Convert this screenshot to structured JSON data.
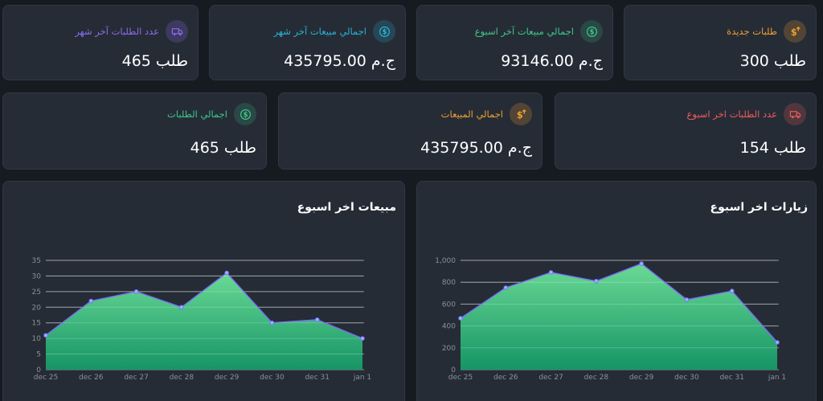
{
  "colors": {
    "background": "#161b22",
    "card": "#262c36",
    "orange": "#f0a030",
    "green": "#3cc98a",
    "cyan": "#27b4d6",
    "purple": "#8b6cf0",
    "red": "#ef5b5b",
    "chart_line": "#7b6ef6",
    "chart_fill_top": "#6ee39a",
    "chart_fill_bottom": "#159a68"
  },
  "stats_row1": [
    {
      "label": "طلبات جديدة",
      "value": "300 طلب",
      "icon": "dollar-up-icon",
      "color": "orange"
    },
    {
      "label": "اجمالي مبيعات آخر اسبوع",
      "value": "93146.00 ج.م",
      "icon": "dollar-circle-icon",
      "color": "green"
    },
    {
      "label": "اجمالي مبيعات آخر شهر",
      "value": "435795.00 ج.م",
      "icon": "dollar-circle-icon",
      "color": "cyan"
    },
    {
      "label": "عدد الطلبات آخر شهر",
      "value": "465 طلب",
      "icon": "truck-icon",
      "color": "purple"
    }
  ],
  "stats_row2": [
    {
      "label": "عدد الطلبات اخر اسبوع",
      "value": "154 طلب",
      "icon": "truck-icon",
      "color": "red"
    },
    {
      "label": "اجمالي المبيعات",
      "value": "435795.00 ج.م",
      "icon": "dollar-up-icon",
      "color": "orange"
    },
    {
      "label": "اجمالي الطلبات",
      "value": "465 طلب",
      "icon": "dollar-circle-icon",
      "color": "green"
    }
  ],
  "chart_data": [
    {
      "type": "area",
      "title": "زيارات اخر اسبوع",
      "x": [
        "dec 25",
        "dec 26",
        "dec 27",
        "dec 28",
        "dec 29",
        "dec 30",
        "dec 31",
        "jan 1"
      ],
      "series": [
        {
          "values": [
            470,
            750,
            890,
            810,
            970,
            640,
            720,
            250
          ]
        }
      ],
      "ylim": [
        0,
        1000
      ],
      "yticks": [
        "0",
        "200",
        "400",
        "600",
        "800",
        "1,000"
      ],
      "grid": true
    },
    {
      "type": "area",
      "title": "مبيعات اخر اسبوع",
      "x": [
        "dec 25",
        "dec 26",
        "dec 27",
        "dec 28",
        "dec 29",
        "dec 30",
        "dec 31",
        "jan 1"
      ],
      "series": [
        {
          "values": [
            11,
            22,
            25,
            20,
            31,
            15,
            16,
            10
          ]
        }
      ],
      "ylim": [
        0,
        35
      ],
      "yticks": [
        "0",
        "5",
        "10",
        "15",
        "20",
        "25",
        "30",
        "35"
      ],
      "grid": true
    }
  ]
}
